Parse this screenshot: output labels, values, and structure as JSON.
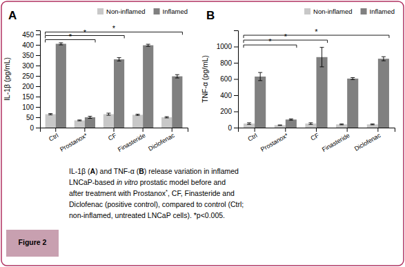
{
  "chart_data": [
    {
      "type": "bar",
      "title": "A",
      "ylabel": "IL-1β (pg/mL)",
      "categories": [
        "Ctrl",
        "Prostanox*",
        "CF",
        "Finasteride",
        "Diclofenac"
      ],
      "series": [
        {
          "name": "Non-inflamed",
          "color": "#c8c8c8",
          "values": [
            65,
            35,
            65,
            62,
            50
          ],
          "errors": [
            3,
            2,
            5,
            3,
            3
          ]
        },
        {
          "name": "Inflamed",
          "color": "#808080",
          "values": [
            405,
            50,
            330,
            398,
            248
          ],
          "errors": [
            5,
            5,
            8,
            5,
            8
          ]
        }
      ],
      "ylim": [
        0,
        470
      ],
      "yticks": [
        0,
        50,
        100,
        150,
        200,
        250,
        300,
        350,
        400,
        450
      ],
      "annotations": [
        {
          "from": "Ctrl",
          "to": "Prostanox*",
          "y": 425,
          "text": "*"
        },
        {
          "from": "Ctrl",
          "to": "CF",
          "y": 445,
          "text": "*"
        },
        {
          "from": "Ctrl",
          "to": "Diclofenac",
          "y": 462,
          "text": "*"
        }
      ],
      "grid": false,
      "legend": "upper right"
    },
    {
      "type": "bar",
      "title": "B",
      "ylabel": "TNF-α (pg/mL)",
      "categories": [
        "Ctrl",
        "Prostanox*",
        "CF",
        "Finasteride",
        "Diclofenac"
      ],
      "series": [
        {
          "name": "Non-inflamed",
          "color": "#c8c8c8",
          "values": [
            50,
            30,
            50,
            40,
            40
          ],
          "errors": [
            10,
            3,
            10,
            5,
            5
          ]
        },
        {
          "name": "Inflamed",
          "color": "#808080",
          "values": [
            630,
            100,
            870,
            605,
            850
          ],
          "errors": [
            50,
            8,
            120,
            12,
            25
          ]
        }
      ],
      "ylim": [
        0,
        1200
      ],
      "yticks": [
        0,
        200,
        400,
        600,
        800,
        1000
      ],
      "annotations": [
        {
          "from": "Ctrl",
          "to": "Prostanox*",
          "y": 1020,
          "text": "*"
        },
        {
          "from": "Ctrl",
          "to": "CF",
          "y": 1080,
          "text": "*"
        },
        {
          "from": "Ctrl",
          "to": "Diclofenac",
          "y": 1140,
          "text": "*"
        }
      ],
      "grid": false,
      "legend": "upper right"
    }
  ],
  "figure_label": "Figure 2",
  "caption": [
    [
      {
        "text": "IL-1β (",
        "style": "regular"
      },
      {
        "text": "A",
        "style": "bold"
      },
      {
        "text": ") and TNF-α (",
        "style": "regular"
      },
      {
        "text": "B",
        "style": "bold"
      },
      {
        "text": ") release variation in inflamed",
        "style": "regular"
      }
    ],
    [
      {
        "text": "LNCaP-based ",
        "style": "regular"
      },
      {
        "text": "in vitro",
        "style": "italic"
      },
      {
        "text": " prostatic model before and",
        "style": "regular"
      }
    ],
    [
      {
        "text": "after treatment with Prostanox",
        "style": "regular"
      },
      {
        "text": "*",
        "style": "superscript"
      },
      {
        "text": ", CF, Finasteride and",
        "style": "regular"
      }
    ],
    [
      {
        "text": "Diclofenac (positive control), compared to control (Ctrl;",
        "style": "regular"
      }
    ],
    [
      {
        "text": "non-inflamed, untreated LNCaP cells). *p<0.005.",
        "style": "regular"
      }
    ]
  ]
}
